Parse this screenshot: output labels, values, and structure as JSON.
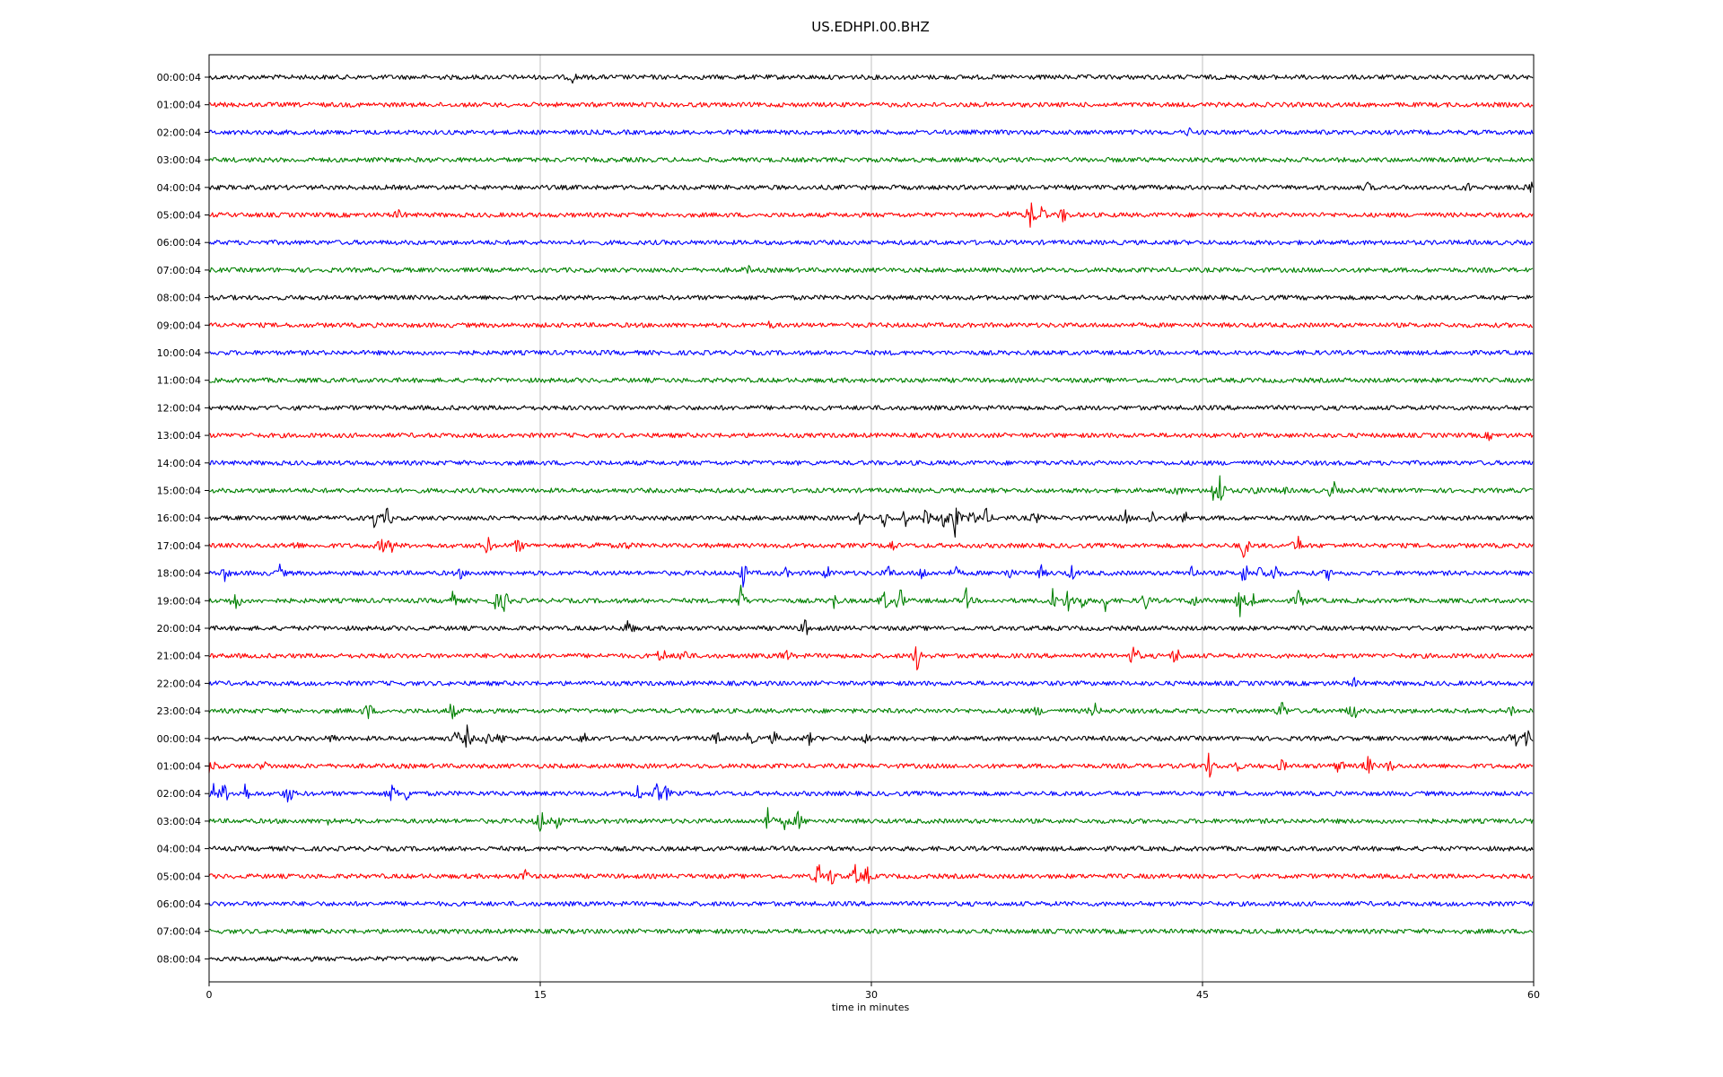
{
  "chart_data": {
    "type": "line",
    "title": "US.EDHPI.00.BHZ",
    "xlabel": "time in minutes",
    "ylabel": "",
    "xlim": [
      0,
      60
    ],
    "x_ticks": [
      0,
      15,
      30,
      45,
      60
    ],
    "grid": "vertical lines at x ticks",
    "colors": [
      "#000000",
      "#ff0000",
      "#0000ff",
      "#008000"
    ],
    "series": [
      {
        "label": "00:00:04",
        "end_minute": 60,
        "events": [
          [
            16.5,
            6
          ]
        ]
      },
      {
        "label": "01:00:04",
        "end_minute": 60,
        "events": []
      },
      {
        "label": "02:00:04",
        "end_minute": 60,
        "events": [
          [
            44.4,
            4
          ]
        ]
      },
      {
        "label": "03:00:04",
        "end_minute": 60,
        "events": []
      },
      {
        "label": "04:00:04",
        "end_minute": 60,
        "events": [
          [
            52.5,
            5
          ],
          [
            57.0,
            5
          ],
          [
            59.9,
            5
          ]
        ]
      },
      {
        "label": "05:00:04",
        "end_minute": 60,
        "events": [
          [
            8.6,
            6
          ],
          [
            36.3,
            6
          ],
          [
            37.2,
            18
          ],
          [
            37.7,
            12
          ],
          [
            38.7,
            10
          ]
        ]
      },
      {
        "label": "06:00:04",
        "end_minute": 60,
        "events": []
      },
      {
        "label": "07:00:04",
        "end_minute": 60,
        "events": [
          [
            24.4,
            4
          ]
        ]
      },
      {
        "label": "08:00:04",
        "end_minute": 60,
        "events": []
      },
      {
        "label": "09:00:04",
        "end_minute": 60,
        "events": [
          [
            25.4,
            4
          ]
        ]
      },
      {
        "label": "10:00:04",
        "end_minute": 60,
        "events": []
      },
      {
        "label": "11:00:04",
        "end_minute": 60,
        "events": []
      },
      {
        "label": "12:00:04",
        "end_minute": 60,
        "events": []
      },
      {
        "label": "13:00:04",
        "end_minute": 60,
        "events": [
          [
            58.0,
            4
          ]
        ]
      },
      {
        "label": "14:00:04",
        "end_minute": 60,
        "events": []
      },
      {
        "label": "15:00:04",
        "end_minute": 60,
        "events": [
          [
            43.8,
            8
          ],
          [
            45.5,
            12
          ],
          [
            45.8,
            22
          ],
          [
            47.5,
            8
          ],
          [
            48.6,
            6
          ],
          [
            50.9,
            14
          ]
        ]
      },
      {
        "label": "16:00:04",
        "end_minute": 60,
        "events": [
          [
            7.5,
            12
          ],
          [
            8.1,
            14
          ],
          [
            29.5,
            8
          ],
          [
            30.6,
            10
          ],
          [
            31.5,
            12
          ],
          [
            32.5,
            14
          ],
          [
            33.3,
            16
          ],
          [
            33.8,
            22
          ],
          [
            34.6,
            12
          ],
          [
            35.2,
            10
          ],
          [
            37.4,
            8
          ],
          [
            41.5,
            8
          ],
          [
            42.7,
            10
          ],
          [
            44.2,
            8
          ]
        ]
      },
      {
        "label": "17:00:04",
        "end_minute": 60,
        "events": [
          [
            3.9,
            6
          ],
          [
            7.8,
            8
          ],
          [
            8.2,
            12
          ],
          [
            12.6,
            12
          ],
          [
            14.0,
            10
          ],
          [
            17.5,
            6
          ],
          [
            18.9,
            5
          ],
          [
            30.9,
            8
          ],
          [
            46.9,
            18
          ],
          [
            49.3,
            14
          ]
        ]
      },
      {
        "label": "18:00:04",
        "end_minute": 60,
        "events": [
          [
            0.7,
            8
          ],
          [
            3.2,
            8
          ],
          [
            11.4,
            5
          ],
          [
            24.2,
            16
          ],
          [
            26.1,
            5
          ],
          [
            28.0,
            8
          ],
          [
            30.8,
            8
          ],
          [
            32.3,
            9
          ],
          [
            33.8,
            7
          ],
          [
            36.2,
            8
          ],
          [
            37.7,
            7
          ],
          [
            39.1,
            8
          ],
          [
            44.5,
            10
          ],
          [
            46.9,
            16
          ],
          [
            47.7,
            14
          ],
          [
            48.3,
            12
          ],
          [
            50.7,
            7
          ]
        ]
      },
      {
        "label": "19:00:04",
        "end_minute": 60,
        "events": [
          [
            1.2,
            16
          ],
          [
            11.0,
            12
          ],
          [
            13.0,
            10
          ],
          [
            13.4,
            14
          ],
          [
            24.1,
            18
          ],
          [
            28.3,
            9
          ],
          [
            30.6,
            14
          ],
          [
            31.3,
            18
          ],
          [
            34.3,
            12
          ],
          [
            38.2,
            14
          ],
          [
            38.9,
            16
          ],
          [
            39.5,
            14
          ],
          [
            40.6,
            10
          ],
          [
            42.4,
            12
          ],
          [
            44.6,
            10
          ],
          [
            46.7,
            16
          ],
          [
            47.2,
            14
          ],
          [
            49.4,
            16
          ]
        ]
      },
      {
        "label": "20:00:04",
        "end_minute": 60,
        "events": [
          [
            19.0,
            12
          ],
          [
            27.0,
            10
          ]
        ]
      },
      {
        "label": "21:00:04",
        "end_minute": 60,
        "events": [
          [
            20.5,
            14
          ],
          [
            21.5,
            12
          ],
          [
            26.1,
            10
          ],
          [
            32.1,
            20
          ],
          [
            41.9,
            18
          ],
          [
            43.8,
            14
          ]
        ]
      },
      {
        "label": "22:00:04",
        "end_minute": 60,
        "events": [
          [
            51.9,
            5
          ]
        ]
      },
      {
        "label": "23:00:04",
        "end_minute": 60,
        "events": [
          [
            7.2,
            12
          ],
          [
            11.0,
            12
          ],
          [
            37.5,
            6
          ],
          [
            40.1,
            10
          ],
          [
            48.6,
            14
          ],
          [
            51.8,
            16
          ],
          [
            59.0,
            8
          ]
        ]
      },
      {
        "label": "00:00:04",
        "end_minute": 60,
        "events": [
          [
            5.6,
            5
          ],
          [
            11.2,
            10
          ],
          [
            11.7,
            14
          ],
          [
            12.6,
            9
          ],
          [
            13.2,
            8
          ],
          [
            17.0,
            8
          ],
          [
            23.0,
            8
          ],
          [
            24.5,
            10
          ],
          [
            25.6,
            8
          ],
          [
            27.2,
            6
          ],
          [
            29.8,
            6
          ],
          [
            59.1,
            16
          ],
          [
            59.7,
            10
          ]
        ]
      },
      {
        "label": "01:00:04",
        "end_minute": 60,
        "events": [
          [
            0.1,
            14
          ],
          [
            2.5,
            5
          ],
          [
            45.3,
            16
          ],
          [
            46.5,
            8
          ],
          [
            48.6,
            8
          ],
          [
            51.2,
            10
          ],
          [
            52.5,
            12
          ],
          [
            53.5,
            8
          ]
        ]
      },
      {
        "label": "02:00:04",
        "end_minute": 60,
        "events": [
          [
            0.2,
            10
          ],
          [
            0.7,
            14
          ],
          [
            1.6,
            16
          ],
          [
            3.6,
            14
          ],
          [
            8.3,
            12
          ],
          [
            9.0,
            10
          ],
          [
            19.4,
            12
          ],
          [
            20.3,
            12
          ],
          [
            20.7,
            8
          ]
        ]
      },
      {
        "label": "03:00:04",
        "end_minute": 60,
        "events": [
          [
            5.5,
            5
          ],
          [
            15.0,
            18
          ],
          [
            15.7,
            14
          ],
          [
            25.3,
            14
          ],
          [
            26.1,
            10
          ],
          [
            26.7,
            12
          ]
        ]
      },
      {
        "label": "04:00:04",
        "end_minute": 60,
        "events": []
      },
      {
        "label": "05:00:04",
        "end_minute": 60,
        "events": [
          [
            14.3,
            8
          ],
          [
            27.6,
            18
          ],
          [
            28.2,
            12
          ],
          [
            29.3,
            14
          ],
          [
            29.8,
            12
          ]
        ]
      },
      {
        "label": "06:00:04",
        "end_minute": 60,
        "events": []
      },
      {
        "label": "07:00:04",
        "end_minute": 60,
        "events": []
      },
      {
        "label": "08:00:04",
        "end_minute": 14,
        "events": []
      }
    ]
  }
}
